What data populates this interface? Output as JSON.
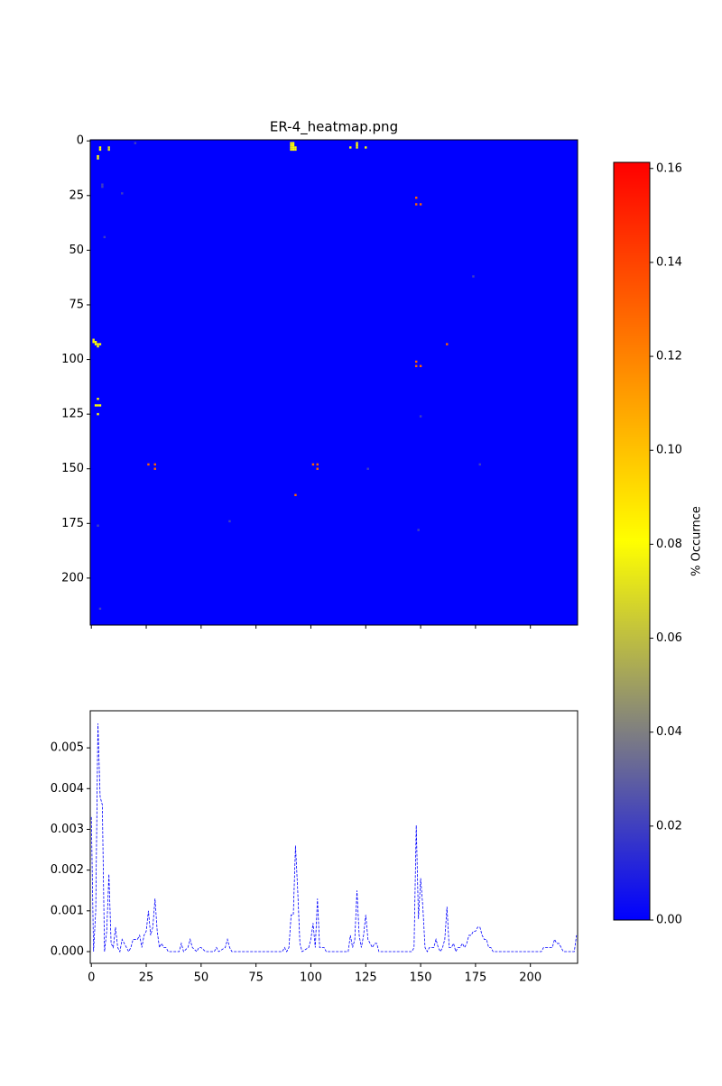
{
  "chart_data": [
    {
      "type": "heatmap",
      "title": "ER-4_heatmap.png",
      "xlim": [
        -0.5,
        221.5
      ],
      "ylim": [
        221.5,
        -0.5
      ],
      "xticks": [
        0,
        25,
        50,
        75,
        100,
        125,
        150,
        175,
        200
      ],
      "xtick_labels": false,
      "yticks": [
        0,
        25,
        50,
        75,
        100,
        125,
        150,
        175,
        200
      ],
      "fill_value": 0,
      "colormap": [
        "#0000ff",
        "#ffff00",
        "#ff0000"
      ],
      "colorbar": {
        "label": "% Occurnce",
        "lim": [
          0,
          0.1613
        ],
        "ticks": [
          {
            "value": 0,
            "label": "0.00"
          },
          {
            "value": 0.02,
            "label": "0.02"
          },
          {
            "value": 0.04,
            "label": "0.04"
          },
          {
            "value": 0.06,
            "label": "0.06"
          },
          {
            "value": 0.08,
            "label": "0.08"
          },
          {
            "value": 0.1,
            "label": "0.10"
          },
          {
            "value": 0.12,
            "label": "0.12"
          },
          {
            "value": 0.14,
            "label": "0.14"
          },
          {
            "value": 0.16,
            "label": "0.16"
          }
        ]
      },
      "cells": [
        {
          "row": 3,
          "col": 4,
          "value": 0.08
        },
        {
          "row": 4,
          "col": 4,
          "value": 0.08
        },
        {
          "row": 7,
          "col": 3,
          "value": 0.08
        },
        {
          "row": 8,
          "col": 3,
          "value": 0.08
        },
        {
          "row": 3,
          "col": 8,
          "value": 0.07
        },
        {
          "row": 4,
          "col": 8,
          "value": 0.07
        },
        {
          "row": 1,
          "col": 91,
          "value": 0.08
        },
        {
          "row": 2,
          "col": 91,
          "value": 0.08
        },
        {
          "row": 3,
          "col": 91,
          "value": 0.08
        },
        {
          "row": 4,
          "col": 91,
          "value": 0.08
        },
        {
          "row": 1,
          "col": 92,
          "value": 0.08
        },
        {
          "row": 2,
          "col": 92,
          "value": 0.08
        },
        {
          "row": 3,
          "col": 92,
          "value": 0.08
        },
        {
          "row": 4,
          "col": 92,
          "value": 0.08
        },
        {
          "row": 3,
          "col": 93,
          "value": 0.08
        },
        {
          "row": 4,
          "col": 93,
          "value": 0.08
        },
        {
          "row": 3,
          "col": 118,
          "value": 0.08
        },
        {
          "row": 1,
          "col": 121,
          "value": 0.08
        },
        {
          "row": 2,
          "col": 121,
          "value": 0.08
        },
        {
          "row": 3,
          "col": 121,
          "value": 0.08
        },
        {
          "row": 3,
          "col": 125,
          "value": 0.08
        },
        {
          "row": 91,
          "col": 1,
          "value": 0.08
        },
        {
          "row": 92,
          "col": 1,
          "value": 0.08
        },
        {
          "row": 92,
          "col": 2,
          "value": 0.08
        },
        {
          "row": 93,
          "col": 2,
          "value": 0.08
        },
        {
          "row": 93,
          "col": 3,
          "value": 0.08
        },
        {
          "row": 93,
          "col": 4,
          "value": 0.08
        },
        {
          "row": 94,
          "col": 3,
          "value": 0.08
        },
        {
          "row": 118,
          "col": 3,
          "value": 0.08
        },
        {
          "row": 121,
          "col": 2,
          "value": 0.08
        },
        {
          "row": 121,
          "col": 3,
          "value": 0.08
        },
        {
          "row": 121,
          "col": 4,
          "value": 0.08
        },
        {
          "row": 125,
          "col": 3,
          "value": 0.08
        },
        {
          "row": 26,
          "col": 148,
          "value": 0.13
        },
        {
          "row": 29,
          "col": 148,
          "value": 0.13
        },
        {
          "row": 29,
          "col": 150,
          "value": 0.13
        },
        {
          "row": 93,
          "col": 162,
          "value": 0.13
        },
        {
          "row": 101,
          "col": 148,
          "value": 0.13
        },
        {
          "row": 103,
          "col": 148,
          "value": 0.13
        },
        {
          "row": 103,
          "col": 150,
          "value": 0.13
        },
        {
          "row": 148,
          "col": 26,
          "value": 0.13
        },
        {
          "row": 148,
          "col": 29,
          "value": 0.13
        },
        {
          "row": 150,
          "col": 29,
          "value": 0.13
        },
        {
          "row": 148,
          "col": 101,
          "value": 0.13
        },
        {
          "row": 148,
          "col": 103,
          "value": 0.13
        },
        {
          "row": 150,
          "col": 103,
          "value": 0.13
        },
        {
          "row": 162,
          "col": 93,
          "value": 0.13
        },
        {
          "row": 20,
          "col": 5,
          "value": 0.02
        },
        {
          "row": 21,
          "col": 5,
          "value": 0.02
        },
        {
          "row": 24,
          "col": 14,
          "value": 0.02
        },
        {
          "row": 44,
          "col": 6,
          "value": 0.02
        },
        {
          "row": 126,
          "col": 150,
          "value": 0.02
        },
        {
          "row": 150,
          "col": 126,
          "value": 0.02
        },
        {
          "row": 62,
          "col": 174,
          "value": 0.02
        },
        {
          "row": 174,
          "col": 63,
          "value": 0.02
        },
        {
          "row": 176,
          "col": 3,
          "value": 0.02
        },
        {
          "row": 214,
          "col": 4,
          "value": 0.02
        },
        {
          "row": 1,
          "col": 20,
          "value": 0.02
        },
        {
          "row": 148,
          "col": 177,
          "value": 0.02
        },
        {
          "row": 178,
          "col": 149,
          "value": 0.02
        }
      ]
    },
    {
      "type": "line",
      "xlim": [
        -0.5,
        221.5
      ],
      "ylim": [
        -0.000288,
        0.00591
      ],
      "xticks": [
        0,
        25,
        50,
        75,
        100,
        125,
        150,
        175,
        200
      ],
      "yticks": [
        {
          "value": 0,
          "label": "0.000"
        },
        {
          "value": 0.001,
          "label": "0.001"
        },
        {
          "value": 0.002,
          "label": "0.002"
        },
        {
          "value": 0.003,
          "label": "0.003"
        },
        {
          "value": 0.004,
          "label": "0.004"
        },
        {
          "value": 0.005,
          "label": "0.005"
        }
      ],
      "x": [
        0,
        1,
        2,
        3,
        4,
        5,
        6,
        7,
        8,
        9,
        10,
        11,
        12,
        13,
        14,
        15,
        16,
        17,
        18,
        19,
        20,
        21,
        22,
        23,
        24,
        25,
        26,
        27,
        28,
        29,
        30,
        31,
        32,
        33,
        34,
        35,
        40,
        41,
        42,
        44,
        45,
        46,
        48,
        49,
        50,
        52,
        56,
        57,
        58,
        61,
        62,
        63,
        64,
        87,
        88,
        89,
        90,
        91,
        92,
        93,
        94,
        95,
        96,
        99,
        100,
        101,
        102,
        103,
        104,
        105,
        106,
        107,
        117,
        118,
        119,
        120,
        121,
        122,
        123,
        124,
        125,
        126,
        127,
        128,
        129,
        130,
        131,
        146,
        147,
        148,
        149,
        150,
        151,
        152,
        153,
        154,
        155,
        156,
        157,
        158,
        159,
        160,
        161,
        162,
        163,
        164,
        165,
        166,
        167,
        168,
        169,
        170,
        171,
        172,
        173,
        174,
        175,
        176,
        177,
        178,
        179,
        180,
        181,
        182,
        183,
        205,
        206,
        208,
        209,
        210,
        211,
        212,
        213,
        214,
        215,
        220,
        221
      ],
      "series": [
        {
          "color": "#0000ff",
          "style": "dashed",
          "values": [
            0.0033,
            0,
            0.001,
            0.0056,
            0.0038,
            0.0036,
            0,
            0.0005,
            0.0019,
            0.0002,
            0.0001,
            0.0006,
            0.0001,
            0,
            0.0003,
            0.0002,
            0.0001,
            0,
            0.0001,
            0.0003,
            0.0003,
            0.0003,
            0.0004,
            0.0001,
            0.0004,
            0.0005,
            0.001,
            0.0004,
            0.0006,
            0.0013,
            0.0005,
            0.0001,
            0.0002,
            0.0001,
            0.0001,
            0,
            0,
            0.0002,
            0,
            0.0001,
            0.0003,
            0.0001,
            0,
            0.0001,
            0.0001,
            0,
            0,
            0.0001,
            0,
            0.0001,
            0.0003,
            0.0001,
            0,
            0,
            0.0001,
            0,
            0.0001,
            0.0009,
            0.0009,
            0.0026,
            0.0015,
            0.0002,
            0,
            0.0001,
            0.0003,
            0.0007,
            0.0001,
            0.0013,
            0.0001,
            0.0001,
            0.0001,
            0,
            0,
            0.0004,
            0.0001,
            0.0003,
            0.0015,
            0.0004,
            0.0001,
            0.0004,
            0.0009,
            0.0003,
            0.0002,
            0.0001,
            0.0002,
            0.0002,
            0,
            0,
            0.0001,
            0.0031,
            0.0008,
            0.0018,
            0.0011,
            0.0001,
            0,
            0.0001,
            0.0001,
            0.0001,
            0.0003,
            0.0001,
            0,
            0.0001,
            0.0003,
            0.0011,
            0.0001,
            0.0001,
            0.0002,
            0,
            0.0001,
            0.0001,
            0.0002,
            0.0001,
            0.0002,
            0.0004,
            0.0004,
            0.0005,
            0.0005,
            0.0006,
            0.0006,
            0.0004,
            0.0003,
            0.0003,
            0.0001,
            0.0001,
            0,
            0,
            0.0001,
            0.0001,
            0.0001,
            0.0001,
            0.0003,
            0.0002,
            0.0002,
            0.0001,
            0,
            0,
            0.0004
          ]
        }
      ]
    }
  ]
}
